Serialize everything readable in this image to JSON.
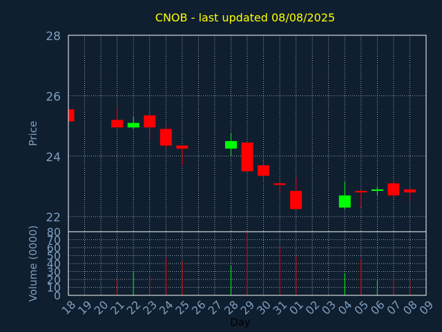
{
  "colors": {
    "background": "#0f1f30",
    "title": "#ffff00",
    "axis_text": "#7f9fbf",
    "grid": "#ffffff",
    "up": "#00ff00",
    "down": "#ff0000",
    "xlabel": "#000000"
  },
  "chart_data": [
    {
      "type": "candlestick",
      "title": "CNOB - last updated 08/08/2025",
      "ylabel": "Price",
      "ylim": [
        21.5,
        28
      ],
      "y_ticks": [
        22,
        24,
        26,
        28
      ],
      "grid": true,
      "x_ticks": [
        "18",
        "19",
        "20",
        "21",
        "22",
        "23",
        "24",
        "25",
        "26",
        "27",
        "28",
        "29",
        "30",
        "31",
        "01",
        "02",
        "03",
        "04",
        "05",
        "06",
        "07",
        "08",
        "09"
      ],
      "candles": [
        {
          "day": "18",
          "open": 25.55,
          "close": 25.15,
          "high": 25.55,
          "low": 25.1
        },
        {
          "day": "21",
          "open": 25.2,
          "close": 24.95,
          "high": 25.6,
          "low": 24.95
        },
        {
          "day": "22",
          "open": 24.95,
          "close": 25.1,
          "high": 25.3,
          "low": 24.9
        },
        {
          "day": "23",
          "open": 25.35,
          "close": 24.95,
          "high": 25.35,
          "low": 24.55
        },
        {
          "day": "24",
          "open": 24.9,
          "close": 24.35,
          "high": 25.0,
          "low": 24.25
        },
        {
          "day": "25",
          "open": 24.35,
          "close": 24.25,
          "high": 24.35,
          "low": 23.7
        },
        {
          "day": "28",
          "open": 24.25,
          "close": 24.5,
          "high": 24.75,
          "low": 24.0
        },
        {
          "day": "29",
          "open": 24.45,
          "close": 23.5,
          "high": 24.45,
          "low": 23.5
        },
        {
          "day": "30",
          "open": 23.7,
          "close": 23.35,
          "high": 23.85,
          "low": 23.1
        },
        {
          "day": "31",
          "open": 23.1,
          "close": 23.05,
          "high": 23.15,
          "low": 22.8
        },
        {
          "day": "01",
          "open": 22.85,
          "close": 22.25,
          "high": 23.3,
          "low": 22.25
        },
        {
          "day": "04",
          "open": 22.3,
          "close": 22.7,
          "high": 23.15,
          "low": 22.25
        },
        {
          "day": "05",
          "open": 22.85,
          "close": 22.8,
          "high": 22.9,
          "low": 22.3
        },
        {
          "day": "06",
          "open": 22.85,
          "close": 22.9,
          "high": 23.0,
          "low": 22.7
        },
        {
          "day": "07",
          "open": 23.1,
          "close": 22.7,
          "high": 23.2,
          "low": 22.6
        },
        {
          "day": "08",
          "open": 22.9,
          "close": 22.8,
          "high": 22.95,
          "low": 22.5
        }
      ]
    },
    {
      "type": "bar",
      "ylabel": "Volume (0000)",
      "xlabel": "Day",
      "ylim": [
        0,
        80
      ],
      "y_ticks": [
        0,
        10,
        20,
        30,
        40,
        50,
        60,
        70,
        80
      ],
      "grid": true,
      "x_ticks": [
        "18",
        "19",
        "20",
        "21",
        "22",
        "23",
        "24",
        "25",
        "26",
        "27",
        "28",
        "29",
        "30",
        "31",
        "01",
        "02",
        "03",
        "04",
        "05",
        "06",
        "07",
        "08",
        "09"
      ],
      "bars": [
        {
          "day": "18",
          "value": 0,
          "dir": "down"
        },
        {
          "day": "21",
          "value": 21,
          "dir": "down"
        },
        {
          "day": "22",
          "value": 30,
          "dir": "up"
        },
        {
          "day": "23",
          "value": 25,
          "dir": "down"
        },
        {
          "day": "24",
          "value": 47,
          "dir": "down"
        },
        {
          "day": "25",
          "value": 43,
          "dir": "down"
        },
        {
          "day": "28",
          "value": 37,
          "dir": "up"
        },
        {
          "day": "29",
          "value": 80,
          "dir": "down"
        },
        {
          "day": "30",
          "value": 49,
          "dir": "down"
        },
        {
          "day": "31",
          "value": 61,
          "dir": "down"
        },
        {
          "day": "01",
          "value": 50,
          "dir": "down"
        },
        {
          "day": "04",
          "value": 28,
          "dir": "up"
        },
        {
          "day": "05",
          "value": 46,
          "dir": "down"
        },
        {
          "day": "06",
          "value": 19,
          "dir": "up"
        },
        {
          "day": "07",
          "value": 20,
          "dir": "down"
        },
        {
          "day": "08",
          "value": 20,
          "dir": "down"
        }
      ]
    }
  ]
}
